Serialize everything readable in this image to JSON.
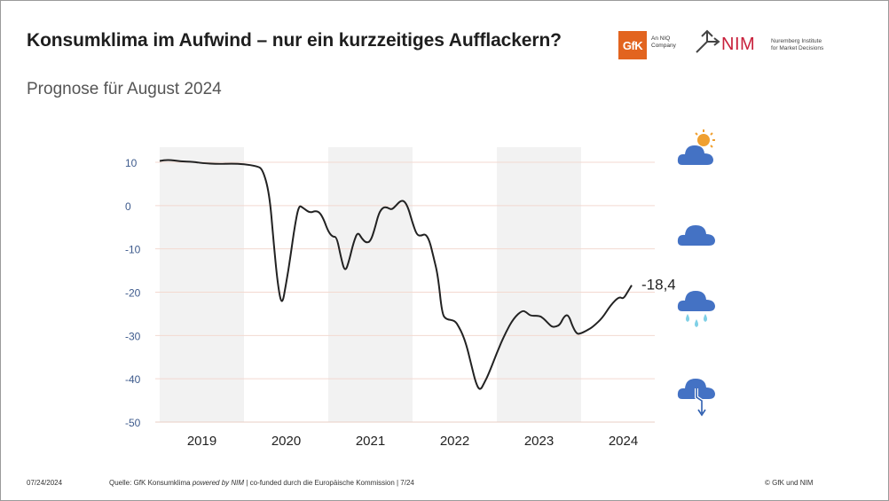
{
  "header": {
    "title": "Konsumklima im Aufwind – nur ein kurzzeitiges Aufflackern?",
    "subtitle": "Prognose für August 2024"
  },
  "logos": {
    "gfk_mark": "GfK",
    "gfk_tagline_1": "An NIQ",
    "gfk_tagline_2": "Company",
    "nim_mark": "NIM",
    "nim_tagline_1": "Nuremberg Institute",
    "nim_tagline_2": "for Market Decisions"
  },
  "footer": {
    "date": "07/24/2024",
    "source_prefix": "Quelle: GfK Konsumklima ",
    "source_powered": "powered by NIM",
    "source_suffix": " | co-funded durch die Europäische Kommission | 7/24",
    "copyright": "© GfK und NIM"
  },
  "weather_icons": [
    "sun-cloud-icon",
    "cloud-icon",
    "rain-cloud-icon",
    "thunder-cloud-icon"
  ],
  "colors": {
    "line": "#222222",
    "shade": "#f2f2f2",
    "tick_label": "#3d5a8c",
    "cloud": "#4472c4",
    "sun": "#f0a030",
    "rain": "#7fd0e6"
  },
  "chart_data": {
    "type": "line",
    "title": "",
    "xlabel": "",
    "ylabel": "",
    "ylim": [
      -50,
      10
    ],
    "yticks": [
      10,
      0,
      -10,
      -20,
      -30,
      -40,
      -50
    ],
    "xlim": [
      2018.5,
      2024.5
    ],
    "years": [
      "2019",
      "2020",
      "2021",
      "2022",
      "2023",
      "2024"
    ],
    "shaded_years": [
      "2019",
      "2021",
      "2023"
    ],
    "grid": "horizontal",
    "annotation": "-18,4",
    "series": [
      {
        "x": [
          2018.5,
          2018.6,
          2018.75,
          2018.9,
          2019.0,
          2019.2,
          2019.35,
          2019.5,
          2019.65,
          2019.72,
          2019.8,
          2019.85,
          2019.9,
          2019.95,
          2020.0,
          2020.05,
          2020.1,
          2020.15,
          2020.2,
          2020.28,
          2020.35,
          2020.4,
          2020.45,
          2020.5,
          2020.55,
          2020.6,
          2020.65,
          2020.7,
          2020.75,
          2020.8,
          2020.85,
          2020.9,
          2020.95,
          2021.0,
          2021.05,
          2021.1,
          2021.15,
          2021.2,
          2021.25,
          2021.3,
          2021.35,
          2021.4,
          2021.45,
          2021.5,
          2021.55,
          2021.6,
          2021.65,
          2021.7,
          2021.75,
          2021.8,
          2021.85,
          2021.9,
          2022.0,
          2022.05,
          2022.1,
          2022.15,
          2022.2,
          2022.25,
          2022.3,
          2022.35,
          2022.4,
          2022.5,
          2022.6,
          2022.7,
          2022.8,
          2022.85,
          2022.9,
          2023.0,
          2023.05,
          2023.1,
          2023.15,
          2023.2,
          2023.25,
          2023.3,
          2023.35,
          2023.4,
          2023.45,
          2023.5,
          2023.55,
          2023.6,
          2023.65,
          2023.75,
          2023.85,
          2023.95,
          2024.0,
          2024.05,
          2024.1
        ],
        "y": [
          10.3,
          10.6,
          10.2,
          10.1,
          9.8,
          9.6,
          9.7,
          9.6,
          9.1,
          8.5,
          3.0,
          -8.0,
          -18.2,
          -23.4,
          -18.0,
          -12.0,
          -5.0,
          0.1,
          -0.5,
          -1.7,
          -1.2,
          -1.6,
          -3.4,
          -6.0,
          -7.2,
          -7.2,
          -12.0,
          -15.5,
          -12.5,
          -8.5,
          -6.0,
          -7.7,
          -8.6,
          -8.3,
          -5.5,
          -1.7,
          -0.4,
          -0.4,
          -1.0,
          -0.1,
          1.0,
          1.2,
          -0.6,
          -4.0,
          -6.8,
          -7.0,
          -6.5,
          -8.0,
          -12.0,
          -16.0,
          -25.0,
          -26.3,
          -26.5,
          -28.0,
          -30.0,
          -33.0,
          -37.0,
          -41.0,
          -42.8,
          -41.0,
          -39.0,
          -34.0,
          -29.5,
          -26.0,
          -24.2,
          -24.6,
          -25.5,
          -25.4,
          -26.0,
          -27.0,
          -28.0,
          -28.0,
          -27.5,
          -25.5,
          -25.2,
          -28.0,
          -29.7,
          -29.5,
          -29.0,
          -28.5,
          -27.8,
          -26.0,
          -23.0,
          -21.0,
          -21.6,
          -20.0,
          -18.4
        ]
      }
    ]
  }
}
